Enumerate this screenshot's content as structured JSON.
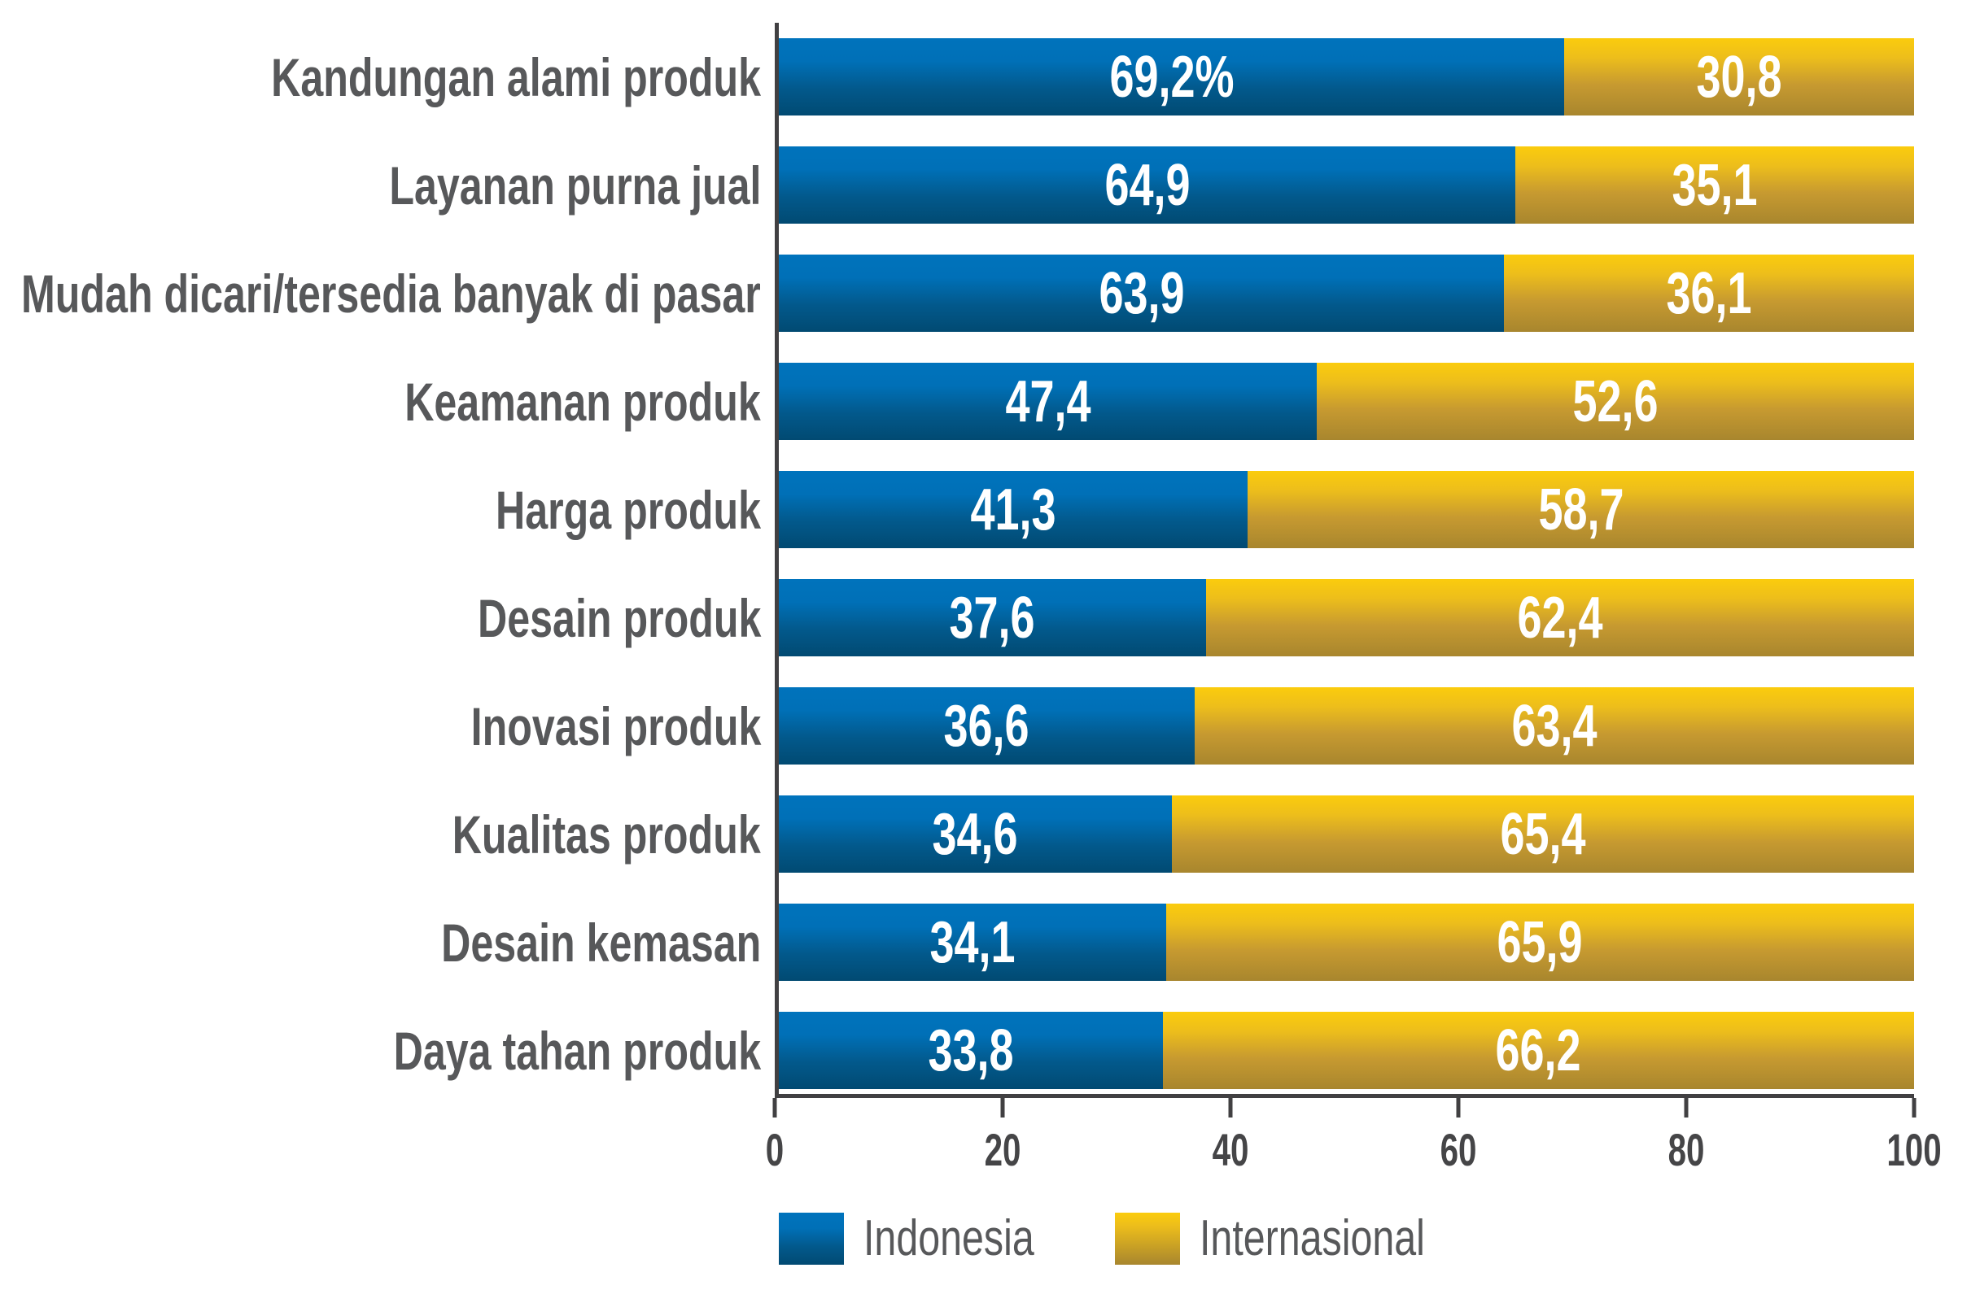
{
  "chart_data": {
    "type": "bar",
    "orientation": "horizontal",
    "stacked": true,
    "title": "",
    "xlabel": "",
    "ylabel": "",
    "xlim": [
      0,
      100
    ],
    "x_ticks": [
      "0",
      "20",
      "40",
      "60",
      "80",
      "100"
    ],
    "grid": false,
    "legend_position": "bottom",
    "background_color": "#ffffff",
    "axis_color": "#414042",
    "category_label_color": "#57585a",
    "tick_label_color": "#454547",
    "value_label_color": "#ffffff",
    "categories": [
      "Kandungan alami produk",
      "Layanan purna jual",
      "Mudah dicari/tersedia banyak di pasar",
      "Keamanan produk",
      "Harga produk",
      "Desain produk",
      "Inovasi produk",
      "Kualitas produk",
      "Desain kemasan",
      "Daya tahan produk"
    ],
    "series": [
      {
        "name": "Indonesia",
        "color_top": "#0073bc",
        "color_bottom": "#014a72",
        "values": [
          69.2,
          64.9,
          63.9,
          47.4,
          41.3,
          37.6,
          36.6,
          34.6,
          34.1,
          33.8
        ]
      },
      {
        "name": "Internasional",
        "color_top": "#fbcc0d",
        "color_bottom": "#a8862e",
        "values": [
          30.8,
          35.1,
          36.1,
          52.6,
          58.7,
          62.4,
          63.4,
          65.4,
          65.9,
          66.2
        ]
      }
    ],
    "value_labels": [
      [
        "69,2%",
        "30,8"
      ],
      [
        "64,9",
        "35,1"
      ],
      [
        "63,9",
        "36,1"
      ],
      [
        "47,4",
        "52,6"
      ],
      [
        "41,3",
        "58,7"
      ],
      [
        "37,6",
        "62,4"
      ],
      [
        "36,6",
        "63,4"
      ],
      [
        "34,6",
        "65,4"
      ],
      [
        "34,1",
        "65,9"
      ],
      [
        "33,8",
        "66,2"
      ]
    ]
  },
  "legend": {
    "indonesia_label": "Indonesia",
    "internasional_label": "Internasional"
  }
}
